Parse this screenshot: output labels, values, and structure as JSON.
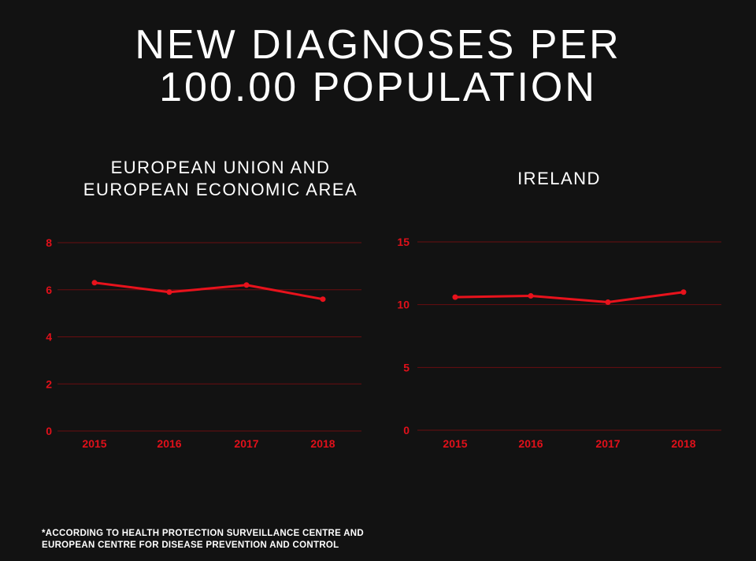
{
  "title_lines": [
    "NEW DIAGNOSES PER",
    "100.00 POPULATION"
  ],
  "footnote_lines": [
    "*ACCORDING TO HEALTH PROTECTION SURVEILLANCE CENTRE AND",
    "EUROPEAN CENTRE FOR DISEASE PREVENTION AND CONTROL"
  ],
  "colors": {
    "background": "#121212",
    "line": "#e8121c",
    "grid": "#6a0d10",
    "text": "#ffffff",
    "tick": "#e0101a"
  },
  "chart_data": [
    {
      "type": "line",
      "title_lines": [
        "EUROPEAN UNION AND",
        "EUROPEAN ECONOMIC AREA"
      ],
      "categories": [
        "2015",
        "2016",
        "2017",
        "2018"
      ],
      "values": [
        6.3,
        5.9,
        6.2,
        5.6
      ],
      "ylim": [
        0,
        8
      ],
      "yticks": [
        0,
        2,
        4,
        6,
        8
      ],
      "grid": true
    },
    {
      "type": "line",
      "title_lines": [
        "IRELAND"
      ],
      "categories": [
        "2015",
        "2016",
        "2017",
        "2018"
      ],
      "values": [
        10.6,
        10.7,
        10.2,
        11.0
      ],
      "ylim": [
        0,
        15
      ],
      "yticks": [
        0,
        5,
        10,
        15
      ],
      "grid": true
    }
  ]
}
